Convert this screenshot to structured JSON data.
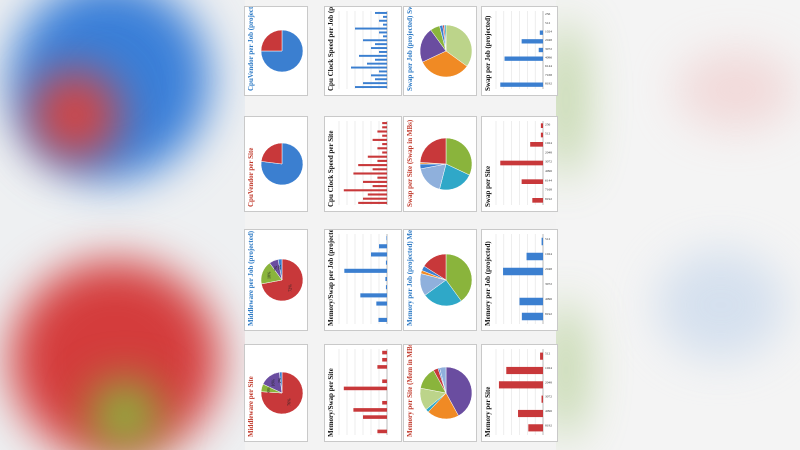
{
  "colors": {
    "blue": "#3b7fd0",
    "red": "#c8383a",
    "green": "#8ab43c",
    "purple": "#6a4da0",
    "orange": "#f08a24",
    "cyan": "#2fa8c8",
    "lightblue": "#8fb0dc",
    "lightgreen": "#bcd48a",
    "job_title": "#2a78c4",
    "site_title": "#c0392b"
  },
  "chart_data": [
    {
      "type": "pie",
      "title": "CpuVendor per Job (projected)",
      "tone": "job",
      "values": [
        75,
        25
      ],
      "colors": [
        "blue",
        "red"
      ]
    },
    {
      "type": "bar",
      "title": "Cpu Clock Speed per Job (projected)",
      "tone": "job",
      "values": [
        3,
        1,
        2,
        1,
        8,
        2,
        1,
        6,
        3,
        4,
        2,
        7,
        3,
        5,
        9,
        2,
        4,
        3,
        6,
        8
      ],
      "xmax": 12
    },
    {
      "type": "pie",
      "title": "Swap per Job (projected) Swap in MBs",
      "tone": "job",
      "values": [
        35,
        33,
        22,
        6,
        2,
        1,
        1
      ],
      "colors": [
        "lightgreen",
        "orange",
        "purple",
        "green",
        "blue",
        "red",
        "cyan"
      ]
    },
    {
      "type": "bar",
      "title": "Swap per Job (projected)",
      "tone": "job",
      "categories": [
        "256",
        "512",
        "1024",
        "2048",
        "3072",
        "4096",
        "6144",
        "7168",
        "8192"
      ],
      "values": [
        0,
        0,
        150,
        1000,
        200,
        1800,
        0,
        0,
        2000
      ],
      "xmax": 2200
    },
    {
      "type": "pie",
      "title": "CpuVendor per Site",
      "tone": "site",
      "values": [
        77,
        23
      ],
      "colors": [
        "blue",
        "red"
      ]
    },
    {
      "type": "bar",
      "title": "Cpu Clock Speed per Site",
      "tone": "site",
      "values": [
        1,
        1,
        2,
        1,
        3,
        1,
        2,
        1,
        4,
        2,
        6,
        3,
        7,
        2,
        5,
        3,
        9,
        4,
        5,
        6
      ],
      "xmax": 10
    },
    {
      "type": "pie",
      "title": "Swap per Site (Swap in MBs)",
      "tone": "site",
      "values": [
        32,
        22,
        18,
        3,
        1,
        24
      ],
      "colors": [
        "green",
        "cyan",
        "lightblue",
        "blue",
        "orange",
        "red"
      ]
    },
    {
      "type": "bar",
      "title": "Swap per Site",
      "tone": "site",
      "categories": [
        "256",
        "512",
        "1024",
        "2048",
        "3072",
        "4096",
        "6144",
        "7168",
        "8192"
      ],
      "values": [
        1,
        1,
        6,
        0,
        20,
        0,
        10,
        0,
        5
      ],
      "xmax": 22
    },
    {
      "type": "pie",
      "title": "Middleware per Job (projected)",
      "tone": "job",
      "values": [
        72,
        18,
        7,
        3
      ],
      "labels": [
        "72%",
        "18%",
        "7%",
        "3%"
      ],
      "colors": [
        "red",
        "green",
        "purple",
        "blue"
      ]
    },
    {
      "type": "bar",
      "title": "Memory/Swap per Job (projected)",
      "tone": "job",
      "values": [
        100,
        1500,
        3000,
        200,
        8000,
        300,
        200,
        5000,
        2000,
        0,
        1600
      ],
      "xmax": 9000
    },
    {
      "type": "pie",
      "title": "Memory per Job (projected) Mem in MBs",
      "tone": "job",
      "values": [
        40,
        25,
        14,
        2,
        3,
        16
      ],
      "colors": [
        "green",
        "cyan",
        "lightblue",
        "orange",
        "blue",
        "red"
      ]
    },
    {
      "type": "bar",
      "title": "Memory per Job (projected)",
      "tone": "job",
      "categories": [
        "512",
        "1024",
        "2048",
        "3072",
        "4096",
        "8192"
      ],
      "values": [
        300,
        3500,
        8500,
        0,
        5000,
        4500
      ],
      "xmax": 10000
    },
    {
      "type": "pie",
      "title": "Middleware per Site",
      "tone": "site",
      "values": [
        76,
        6,
        16,
        2
      ],
      "labels": [
        "76%",
        "6%",
        "16%",
        "2%"
      ],
      "colors": [
        "red",
        "green",
        "purple",
        "blue"
      ]
    },
    {
      "type": "bar",
      "title": "Memory/Swap per Site",
      "tone": "site",
      "values": [
        1,
        1,
        2,
        0,
        1,
        9,
        0,
        1,
        7,
        5,
        0,
        2
      ],
      "xmax": 10
    },
    {
      "type": "pie",
      "title": "Memory per Site (Mem in MBs)",
      "tone": "site",
      "values": [
        42,
        20,
        2,
        14,
        14,
        3,
        1,
        4
      ],
      "colors": [
        "purple",
        "orange",
        "cyan",
        "lightgreen",
        "green",
        "red",
        "blue",
        "lightblue"
      ]
    },
    {
      "type": "bar",
      "title": "Memory per Site",
      "tone": "site",
      "categories": [
        "512",
        "1024",
        "2048",
        "3072",
        "4096",
        "8192"
      ],
      "values": [
        2,
        25,
        30,
        1,
        17,
        10
      ],
      "xmax": 32
    }
  ]
}
